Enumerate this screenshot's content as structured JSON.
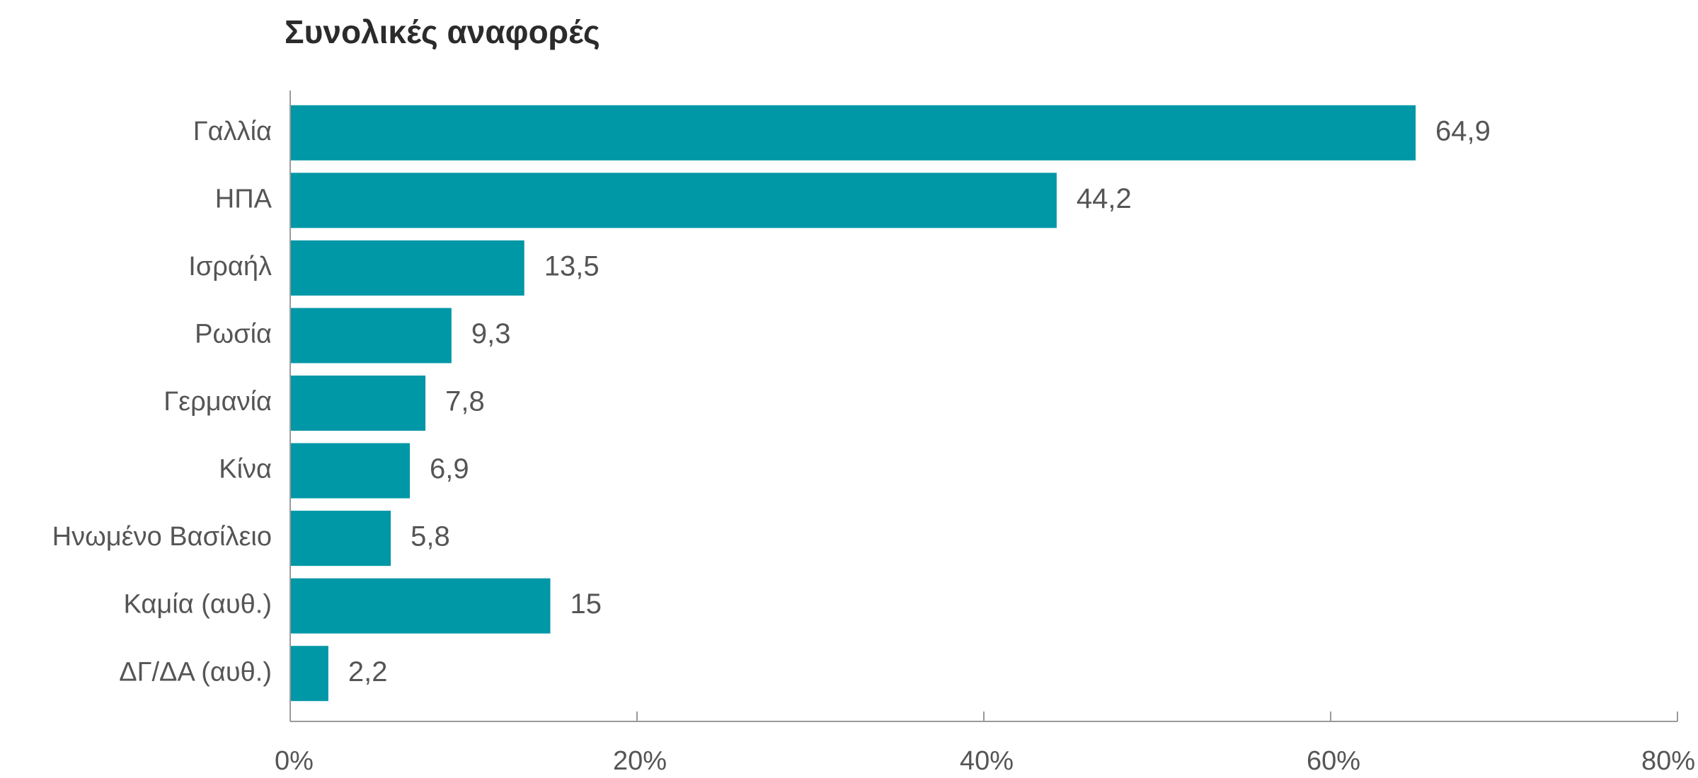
{
  "chart_data": {
    "type": "bar",
    "orientation": "horizontal",
    "title": "Συνολικές αναφορές",
    "categories": [
      "Γαλλία",
      "ΗΠΑ",
      "Ισραήλ",
      "Ρωσία",
      "Γερμανία",
      "Κίνα",
      "Ηνωμένο Βασίλειο",
      "Καμία (αυθ.)",
      "ΔΓ/ΔΑ (αυθ.)"
    ],
    "values": [
      64.9,
      44.2,
      13.5,
      9.3,
      7.8,
      6.9,
      5.8,
      15,
      2.2
    ],
    "value_labels": [
      "64,9",
      "44,2",
      "13,5",
      "9,3",
      "7,8",
      "6,9",
      "5,8",
      "15",
      "2,2"
    ],
    "xlim": [
      0,
      80
    ],
    "x_ticks": [
      0,
      20,
      40,
      60,
      80
    ],
    "x_tick_labels": [
      "0%",
      "20%",
      "40%",
      "60%",
      "80%"
    ],
    "bar_color": "#0097a7",
    "grid": false,
    "legend": "none"
  }
}
